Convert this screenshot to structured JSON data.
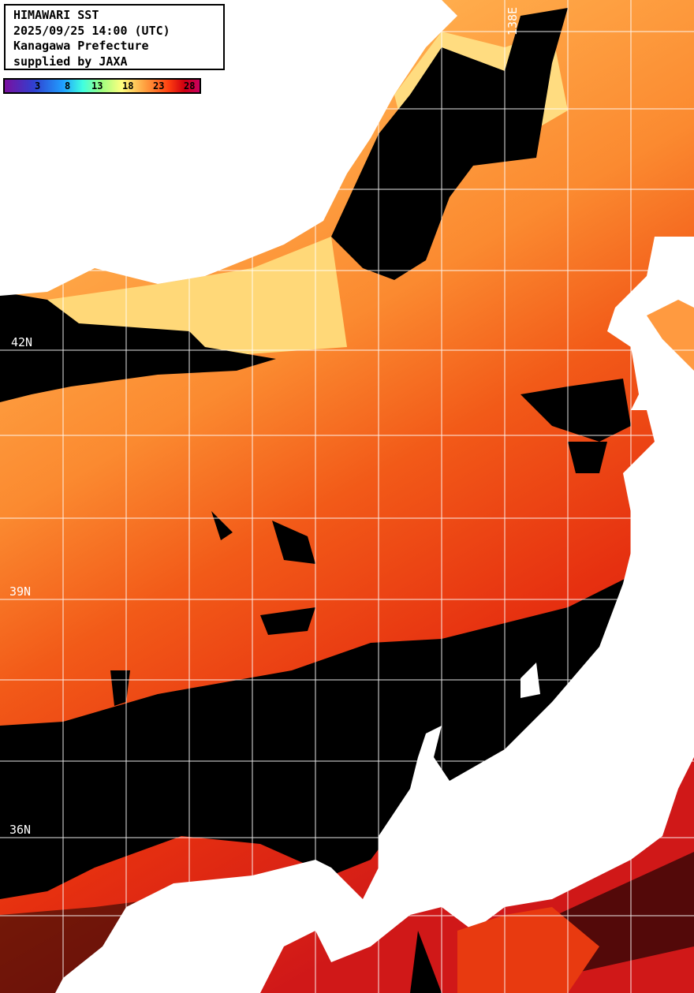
{
  "title_box": {
    "line1": "HIMAWARI SST",
    "line2": "2025/09/25 14:00 (UTC)",
    "line3": "Kanagawa Prefecture",
    "line4": "supplied by JAXA"
  },
  "colorbar": {
    "ticks": [
      "3",
      "8",
      "13",
      "18",
      "23",
      "28"
    ],
    "colors": [
      "#7a10a0",
      "#3040d0",
      "#20a0ff",
      "#40ffe0",
      "#a0ff80",
      "#ffff80",
      "#ffa040",
      "#ff4010",
      "#d00010",
      "#c80060"
    ]
  },
  "grid_labels": {
    "lat": [
      "42N",
      "39N",
      "36N"
    ],
    "lon": [
      "138E"
    ]
  },
  "colors": {
    "land": "#ffffff",
    "cloud": "#000000",
    "grid": "#ffffff"
  }
}
